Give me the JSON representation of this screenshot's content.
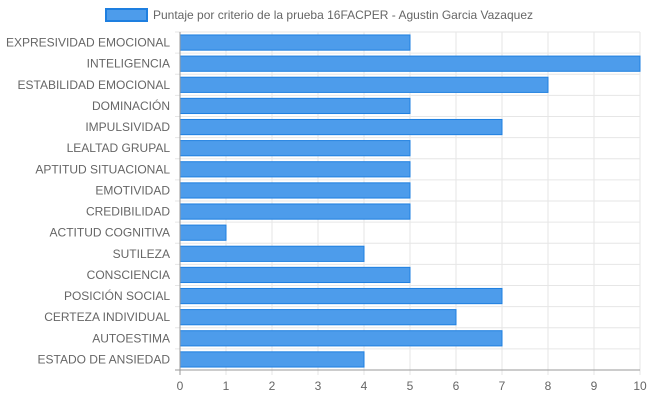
{
  "chart_data": {
    "type": "bar",
    "orientation": "horizontal",
    "legend": {
      "label": "Puntaje por criterio de la prueba 16FACPER - Agustin Garcia Vazaquez",
      "placement": "top"
    },
    "categories": [
      "EXPRESIVIDAD EMOCIONAL",
      "INTELIGENCIA",
      "ESTABILIDAD EMOCIONAL",
      "DOMINACIÓN",
      "IMPULSIVIDAD",
      "LEALTAD GRUPAL",
      "APTITUD SITUACIONAL",
      "EMOTIVIDAD",
      "CREDIBILIDAD",
      "ACTITUD COGNITIVA",
      "SUTILEZA",
      "CONSCIENCIA",
      "POSICIÓN SOCIAL",
      "CERTEZA INDIVIDUAL",
      "AUTOESTIMA",
      "ESTADO DE ANSIEDAD"
    ],
    "values": [
      5,
      10,
      8,
      5,
      7,
      5,
      5,
      5,
      5,
      1,
      4,
      5,
      7,
      6,
      7,
      4
    ],
    "xlim": [
      0,
      10
    ],
    "x_ticks": [
      "0",
      "1",
      "2",
      "3",
      "4",
      "5",
      "6",
      "7",
      "8",
      "9",
      "10"
    ],
    "grid": true,
    "colors": {
      "bar_fill": "#4d9ceb",
      "bar_stroke": "#1e7fe0",
      "grid": "#e6e6e6",
      "axis": "#999999",
      "text": "#666666"
    }
  }
}
